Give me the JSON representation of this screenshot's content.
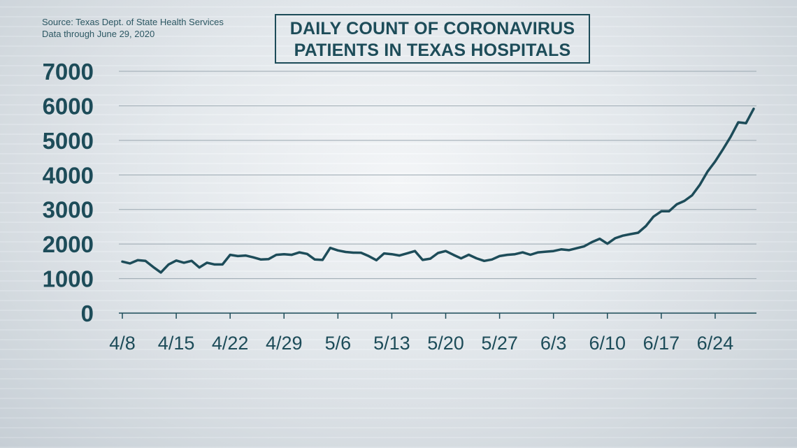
{
  "source": {
    "line1": "Source: Texas Dept. of State Health Services",
    "line2": "Data through June 29, 2020"
  },
  "title": {
    "line1": "DAILY COUNT OF CORONAVIRUS",
    "line2": "PATIENTS IN TEXAS HOSPITALS"
  },
  "colors": {
    "line": "#1d4c59",
    "grid": "#9aa7b0",
    "text": "#1d4c59"
  },
  "chart_data": {
    "type": "line",
    "title": "DAILY COUNT OF CORONAVIRUS PATIENTS IN TEXAS HOSPITALS",
    "xlabel": "",
    "ylabel": "",
    "ylim": [
      0,
      7000
    ],
    "yticks": [
      0,
      1000,
      2000,
      3000,
      4000,
      5000,
      6000,
      7000
    ],
    "xticks": [
      "4/8",
      "4/15",
      "4/22",
      "4/29",
      "5/6",
      "5/13",
      "5/20",
      "5/27",
      "6/3",
      "6/10",
      "6/17",
      "6/24"
    ],
    "xtick_positions": [
      "2020-04-08",
      "2020-04-15",
      "2020-04-22",
      "2020-04-29",
      "2020-05-06",
      "2020-05-13",
      "2020-05-20",
      "2020-05-27",
      "2020-06-03",
      "2020-06-10",
      "2020-06-17",
      "2020-06-24"
    ],
    "grid": true,
    "x": [
      "2020-04-08",
      "2020-04-09",
      "2020-04-10",
      "2020-04-11",
      "2020-04-12",
      "2020-04-13",
      "2020-04-14",
      "2020-04-15",
      "2020-04-16",
      "2020-04-17",
      "2020-04-18",
      "2020-04-19",
      "2020-04-20",
      "2020-04-21",
      "2020-04-22",
      "2020-04-23",
      "2020-04-24",
      "2020-04-25",
      "2020-04-26",
      "2020-04-27",
      "2020-04-28",
      "2020-04-29",
      "2020-04-30",
      "2020-05-01",
      "2020-05-02",
      "2020-05-03",
      "2020-05-04",
      "2020-05-05",
      "2020-05-06",
      "2020-05-07",
      "2020-05-08",
      "2020-05-09",
      "2020-05-10",
      "2020-05-11",
      "2020-05-12",
      "2020-05-13",
      "2020-05-14",
      "2020-05-15",
      "2020-05-16",
      "2020-05-17",
      "2020-05-18",
      "2020-05-19",
      "2020-05-20",
      "2020-05-21",
      "2020-05-22",
      "2020-05-23",
      "2020-05-24",
      "2020-05-25",
      "2020-05-26",
      "2020-05-27",
      "2020-05-28",
      "2020-05-29",
      "2020-05-30",
      "2020-05-31",
      "2020-06-01",
      "2020-06-02",
      "2020-06-03",
      "2020-06-04",
      "2020-06-05",
      "2020-06-06",
      "2020-06-07",
      "2020-06-08",
      "2020-06-09",
      "2020-06-10",
      "2020-06-11",
      "2020-06-12",
      "2020-06-13",
      "2020-06-14",
      "2020-06-15",
      "2020-06-16",
      "2020-06-17",
      "2020-06-18",
      "2020-06-19",
      "2020-06-20",
      "2020-06-21",
      "2020-06-22",
      "2020-06-23",
      "2020-06-24",
      "2020-06-25",
      "2020-06-26",
      "2020-06-27",
      "2020-06-28",
      "2020-06-29"
    ],
    "series": [
      {
        "values": [
          1491,
          1439,
          1532,
          1514,
          1338,
          1176,
          1409,
          1522,
          1459,
          1514,
          1321,
          1459,
          1409,
          1409,
          1687,
          1651,
          1668,
          1614,
          1551,
          1564,
          1687,
          1706,
          1688,
          1758,
          1713,
          1551,
          1539,
          1888,
          1815,
          1770,
          1750,
          1748,
          1651,
          1532,
          1727,
          1706,
          1668,
          1732,
          1796,
          1539,
          1576,
          1739,
          1797,
          1687,
          1584,
          1689,
          1586,
          1512,
          1551,
          1651,
          1687,
          1706,
          1758,
          1689,
          1758,
          1778,
          1796,
          1845,
          1822,
          1878,
          1935,
          2056,
          2153,
          2008,
          2166,
          2242,
          2287,
          2326,
          2518,
          2793,
          2947,
          2947,
          3148,
          3247,
          3409,
          3711,
          4092,
          4389,
          4739,
          5102,
          5523,
          5497,
          5913
        ]
      }
    ]
  }
}
